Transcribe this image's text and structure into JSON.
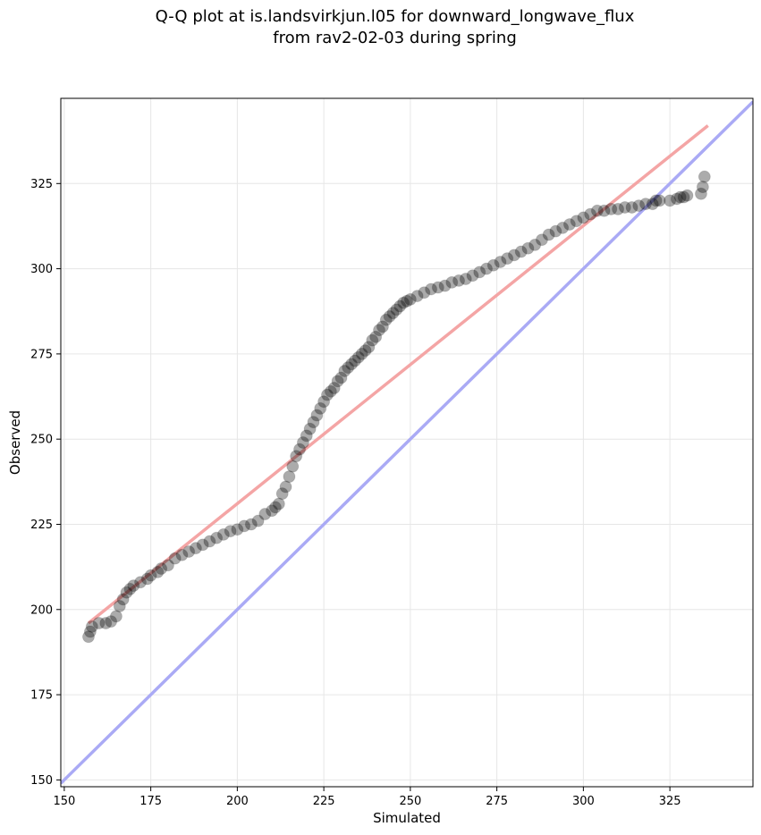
{
  "chart_data": {
    "type": "scatter",
    "title": "Q-Q plot at is.landsvirkjun.l05 for downward_longwave_flux",
    "subtitle": "from rav2-02-03 during spring",
    "xlabel": "Simulated",
    "ylabel": "Observed",
    "xlim": [
      149,
      349
    ],
    "ylim": [
      148,
      350
    ],
    "xticks": [
      150,
      175,
      200,
      225,
      250,
      275,
      300,
      325
    ],
    "yticks": [
      150,
      175,
      200,
      225,
      250,
      275,
      300,
      325
    ],
    "grid": true,
    "series": [
      {
        "kind": "qq_points",
        "color": "#000000",
        "x": [
          157,
          157.5,
          158,
          160,
          162,
          163.5,
          165,
          166,
          167,
          168,
          169,
          170,
          172,
          174,
          175,
          177,
          178,
          180,
          182,
          184,
          186,
          188,
          190,
          192,
          194,
          196,
          198,
          200,
          202,
          204,
          206,
          208,
          210,
          211,
          212,
          213,
          214,
          215,
          216,
          217,
          218,
          219,
          220,
          221,
          222,
          223,
          224,
          225,
          226,
          227,
          228,
          229,
          230,
          231,
          232,
          233,
          234,
          235,
          236,
          237,
          238,
          239,
          240,
          241,
          242,
          243,
          244,
          245,
          246,
          247,
          248,
          249,
          250,
          252,
          254,
          256,
          258,
          260,
          262,
          264,
          266,
          268,
          270,
          272,
          274,
          276,
          278,
          280,
          282,
          284,
          286,
          288,
          290,
          292,
          294,
          296,
          298,
          300,
          302,
          304,
          306,
          308,
          310,
          312,
          314,
          316,
          318,
          320,
          321,
          322,
          325,
          327,
          328,
          329,
          330,
          334,
          334.5,
          335
        ],
        "y": [
          192,
          193.5,
          195,
          196,
          196,
          196.5,
          198,
          201,
          203,
          205,
          206,
          207,
          208,
          209,
          210,
          211,
          212,
          213,
          215,
          216,
          217,
          218,
          219,
          220,
          221,
          222,
          223,
          223.5,
          224.5,
          225,
          226,
          228,
          229,
          230,
          231,
          234,
          236,
          239,
          242,
          245,
          247,
          249,
          251,
          253,
          255,
          257,
          259,
          261,
          263,
          264,
          265,
          267,
          268,
          270,
          271,
          272,
          273,
          274,
          275,
          276,
          277,
          279,
          280,
          282,
          283,
          285,
          286,
          287,
          288,
          289,
          290,
          290.5,
          291,
          292,
          293,
          294,
          294.5,
          295,
          296,
          296.5,
          297,
          298,
          299,
          300,
          301,
          302,
          303,
          304,
          305,
          306,
          307,
          308.5,
          310,
          311,
          312,
          313,
          314,
          315,
          316,
          317,
          317,
          317.5,
          317.5,
          318,
          318,
          318.5,
          319,
          319,
          320,
          320,
          320,
          320.5,
          321,
          321,
          321.5,
          322,
          324,
          327
        ]
      },
      {
        "kind": "fit_line",
        "color": "#f4a5a5",
        "x": [
          157,
          336
        ],
        "y": [
          196,
          342
        ]
      },
      {
        "kind": "identity_line",
        "color": "#aaaaf5",
        "x": [
          149,
          349
        ],
        "y": [
          149,
          349
        ]
      }
    ]
  }
}
